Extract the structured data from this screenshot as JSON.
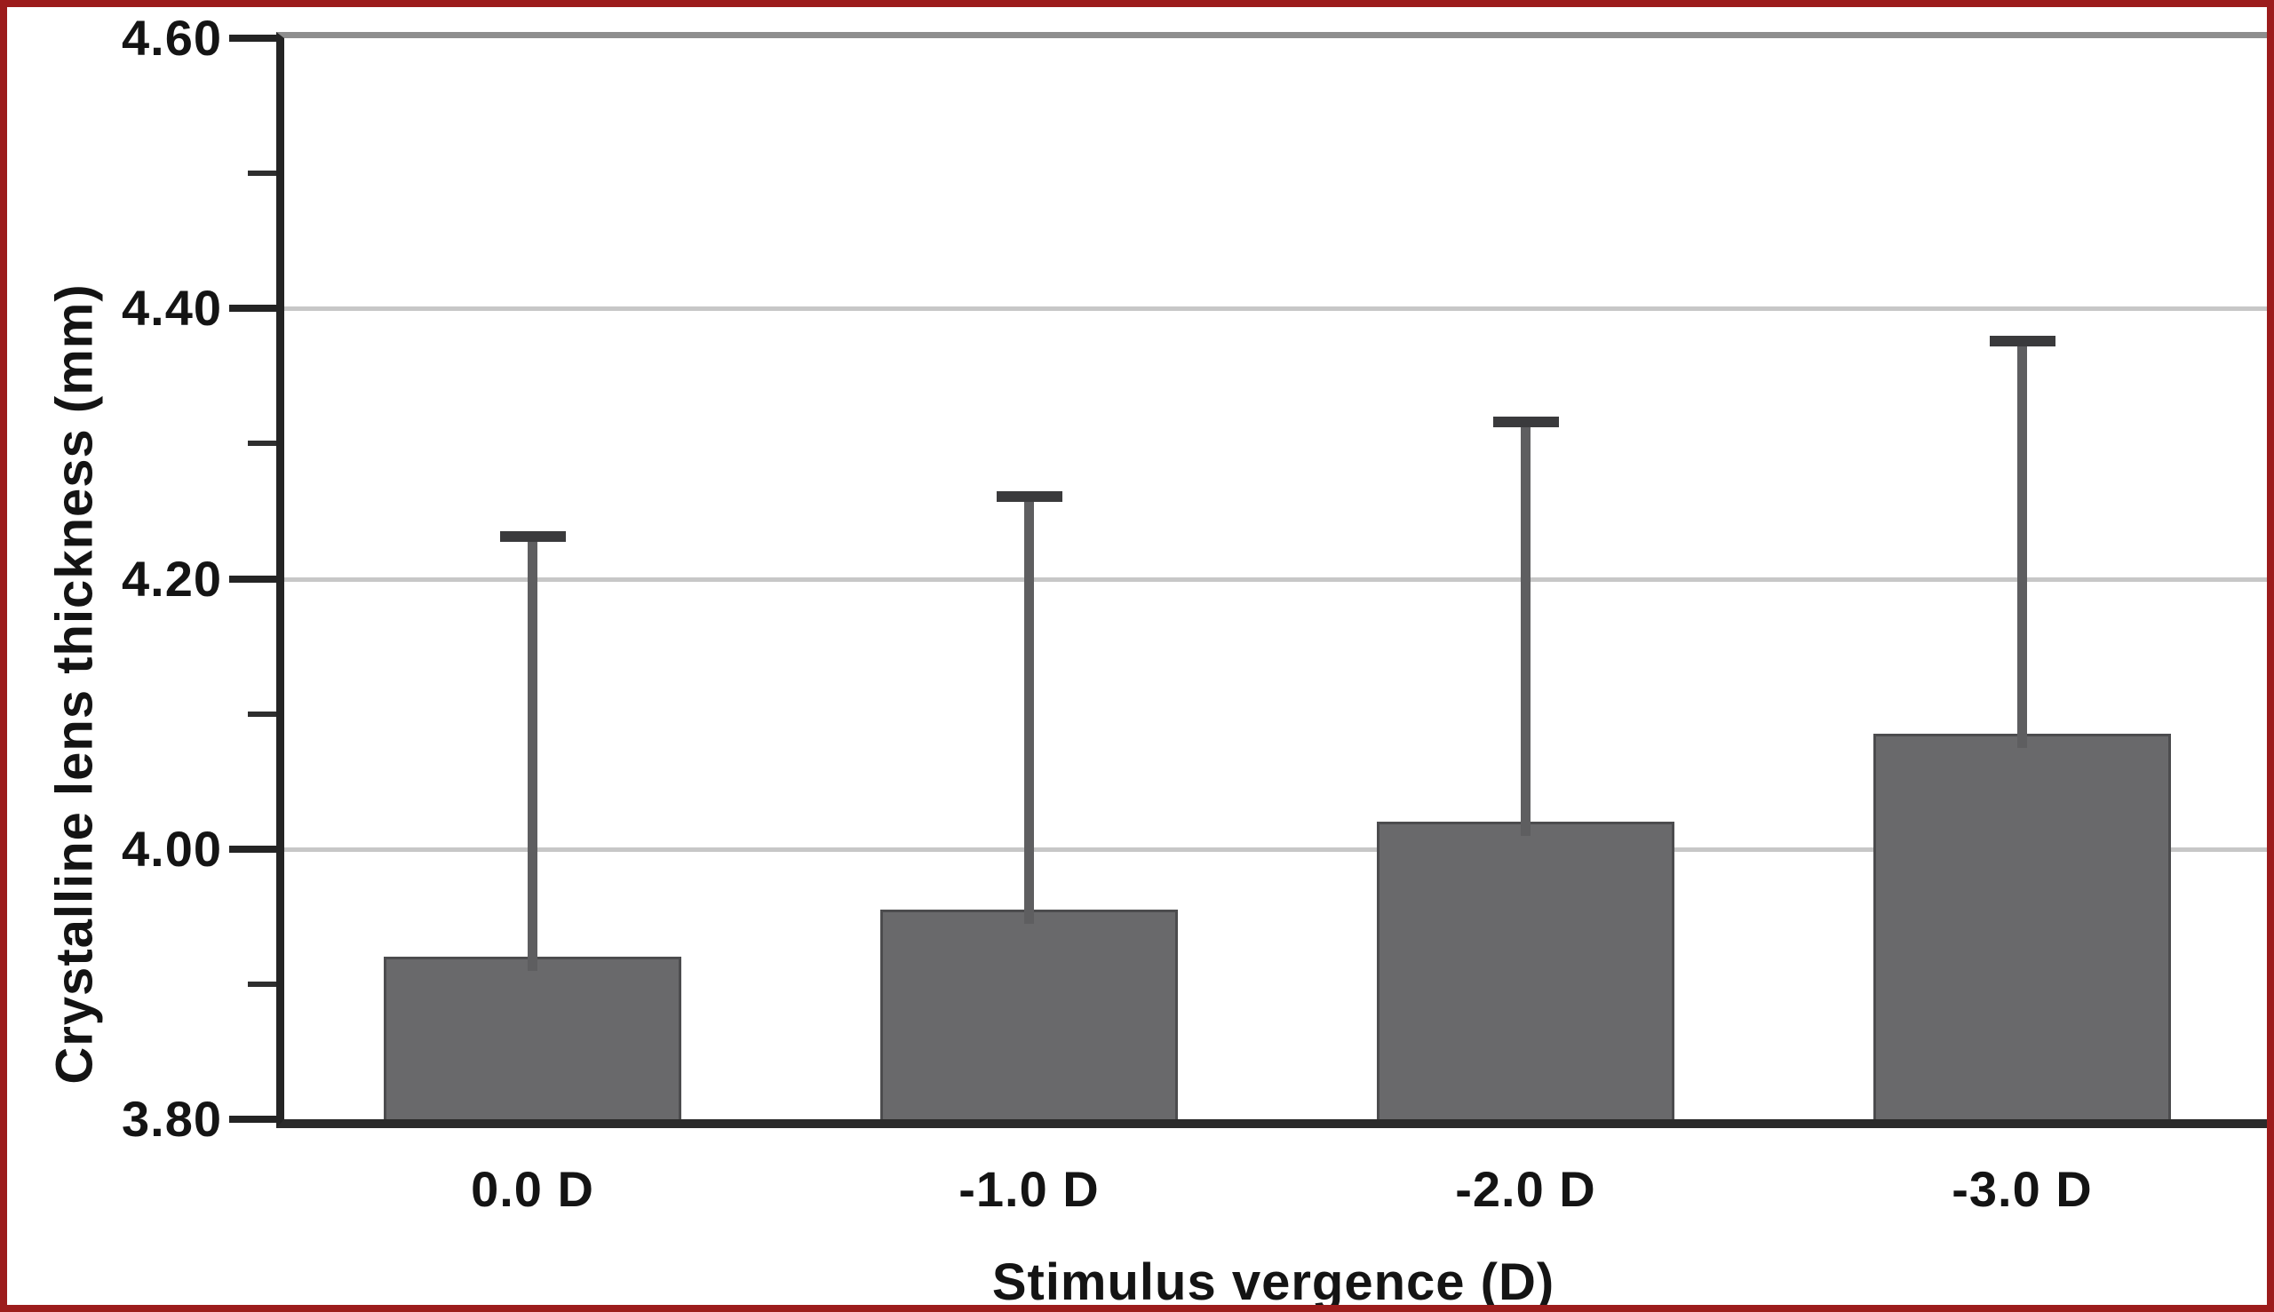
{
  "figure": {
    "border_color": "#9c1c1c",
    "background_color": "#ffffff"
  },
  "chart_data": {
    "type": "bar",
    "title": "",
    "categories": [
      "0.0 D",
      "-1.0 D",
      "-2.0 D",
      "-3.0 D"
    ],
    "values": [
      3.92,
      3.955,
      4.02,
      4.085
    ],
    "errors_upper": [
      0.315,
      0.31,
      0.3,
      0.295
    ],
    "xlabel": "Stimulus vergence (D)",
    "ylabel": "Crystalline lens thickness (mm)",
    "ylim": [
      3.8,
      4.6
    ],
    "ytick_major_step": 0.2,
    "ytick_minor_step": 0.1,
    "ytick_labels": [
      "3.80",
      "4.00",
      "4.20",
      "4.40",
      "4.60"
    ],
    "grid": "horizontal-major",
    "legend_position": "none",
    "bar_color": "#69696b",
    "bar_edge_color": "#4c4c4e",
    "error_bar_color": "#3a3a3c",
    "gridline_color": "#c7c7c7",
    "axis_color": "#242424"
  }
}
